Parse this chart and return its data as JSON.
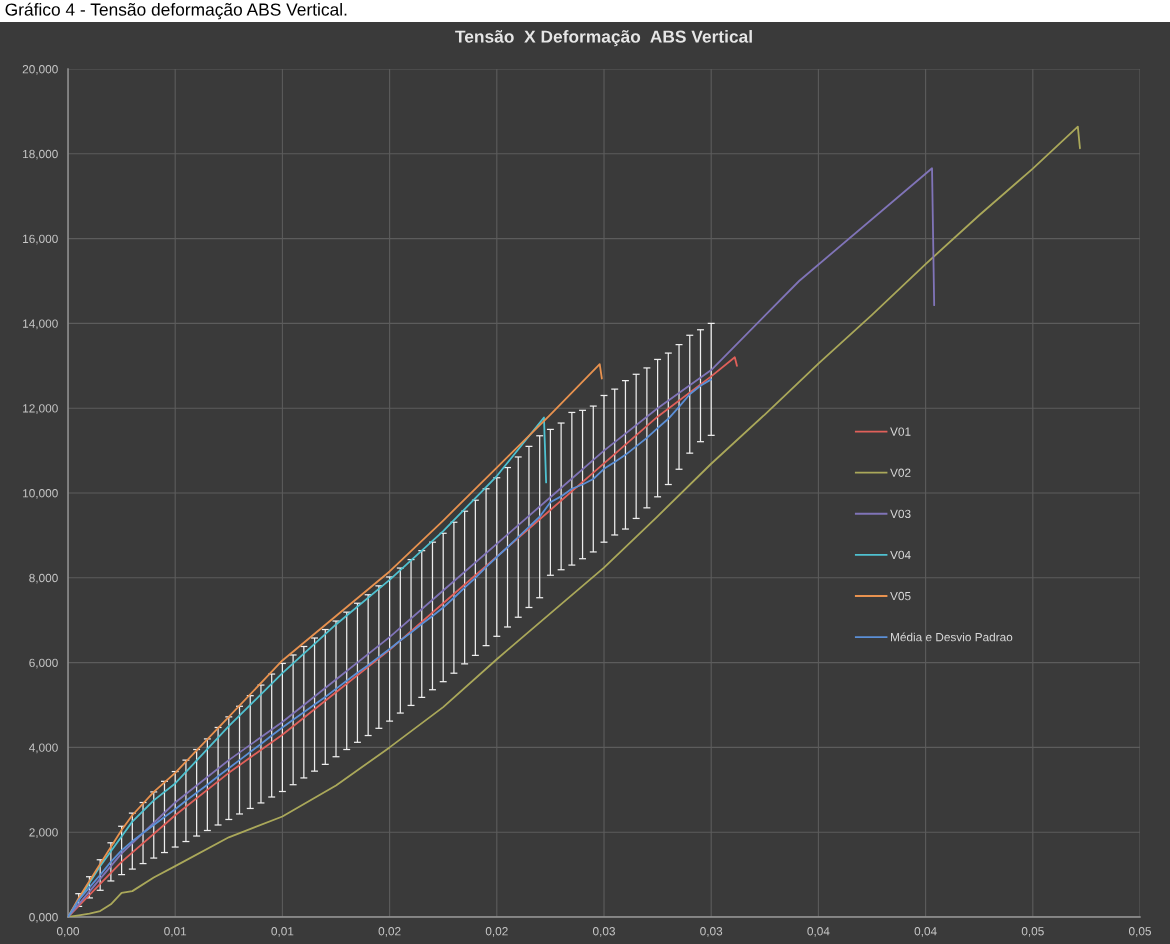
{
  "chart_data": {
    "type": "line",
    "title": "Tensão  X Deformação  ABS Vertical",
    "annotations": [
      "Gráfico 4 - Tensão deformação ABS Vertical."
    ],
    "xlim": [
      0,
      0.05
    ],
    "xticks": [
      {
        "value": 0,
        "label": "0,00"
      },
      {
        "value": 0.005,
        "label": "0,01"
      },
      {
        "value": 0.01,
        "label": "0,01"
      },
      {
        "value": 0.015,
        "label": "0,02"
      },
      {
        "value": 0.02,
        "label": "0,02"
      },
      {
        "value": 0.025,
        "label": "0,03"
      },
      {
        "value": 0.03,
        "label": "0,03"
      },
      {
        "value": 0.035,
        "label": "0,04"
      },
      {
        "value": 0.04,
        "label": "0,04"
      },
      {
        "value": 0.045,
        "label": "0,05"
      },
      {
        "value": 0.05,
        "label": "0,05"
      }
    ],
    "ylim": [
      0,
      20
    ],
    "yticks": [
      {
        "value": 0,
        "label": "0,000"
      },
      {
        "value": 2,
        "label": "2,000"
      },
      {
        "value": 4,
        "label": "4,000"
      },
      {
        "value": 6,
        "label": "6,000"
      },
      {
        "value": 8,
        "label": "8,000"
      },
      {
        "value": 10,
        "label": "10,000"
      },
      {
        "value": 12,
        "label": "12,000"
      },
      {
        "value": 14,
        "label": "14,000"
      },
      {
        "value": 16,
        "label": "16,000"
      },
      {
        "value": 18,
        "label": "18,000"
      },
      {
        "value": 20,
        "label": "20,000"
      }
    ],
    "grid": true,
    "legend": "right",
    "series": [
      {
        "name": "V01",
        "color": "#e0605a",
        "x": [
          0,
          0.0025,
          0.005,
          0.0075,
          0.01,
          0.0125,
          0.015,
          0.0175,
          0.02,
          0.0225,
          0.025,
          0.0275,
          0.03,
          0.0311,
          0.0312
        ],
        "values": [
          0,
          1.3,
          2.4,
          3.4,
          4.3,
          5.3,
          6.3,
          7.4,
          8.5,
          9.6,
          10.7,
          11.8,
          12.75,
          13.2,
          13.0
        ]
      },
      {
        "name": "V02",
        "color": "#aaa85a",
        "x": [
          0,
          0.0005,
          0.001,
          0.0015,
          0.002,
          0.0025,
          0.003,
          0.004,
          0.005,
          0.0075,
          0.01,
          0.0125,
          0.015,
          0.0175,
          0.02,
          0.0225,
          0.025,
          0.0275,
          0.03,
          0.0325,
          0.035,
          0.0375,
          0.04,
          0.0425,
          0.045,
          0.0471,
          0.0472
        ],
        "values": [
          0,
          0.04,
          0.08,
          0.14,
          0.3,
          0.57,
          0.61,
          0.93,
          1.2,
          1.88,
          2.37,
          3.1,
          4.0,
          4.95,
          6.08,
          7.16,
          8.24,
          9.45,
          10.69,
          11.85,
          13.05,
          14.2,
          15.4,
          16.55,
          17.65,
          18.64,
          18.13
        ]
      },
      {
        "name": "V03",
        "color": "#8074b8",
        "x": [
          0,
          0.0025,
          0.005,
          0.0075,
          0.01,
          0.0125,
          0.015,
          0.0175,
          0.02,
          0.0225,
          0.025,
          0.0275,
          0.03,
          0.0341,
          0.0403,
          0.0404
        ],
        "values": [
          0,
          1.5,
          2.7,
          3.7,
          4.6,
          5.6,
          6.6,
          7.7,
          8.8,
          9.9,
          11.0,
          12.0,
          12.9,
          15.0,
          17.66,
          14.43
        ]
      },
      {
        "name": "V04",
        "color": "#4fc1d0",
        "x": [
          0,
          0.0005,
          0.001,
          0.0015,
          0.002,
          0.0025,
          0.003,
          0.004,
          0.005,
          0.0075,
          0.01,
          0.0125,
          0.015,
          0.0175,
          0.02,
          0.0222,
          0.0223
        ],
        "values": [
          0,
          0.4,
          0.8,
          1.2,
          1.55,
          1.9,
          2.25,
          2.75,
          3.15,
          4.5,
          5.75,
          6.9,
          7.95,
          9.1,
          10.4,
          11.78,
          10.25
        ]
      },
      {
        "name": "V05",
        "color": "#e8924f",
        "x": [
          0,
          0.0005,
          0.001,
          0.0015,
          0.002,
          0.0025,
          0.003,
          0.004,
          0.005,
          0.0075,
          0.01,
          0.0125,
          0.015,
          0.0175,
          0.02,
          0.0225,
          0.0248,
          0.0249
        ],
        "values": [
          0,
          0.45,
          0.85,
          1.25,
          1.65,
          2.05,
          2.4,
          2.95,
          3.4,
          4.72,
          6.05,
          7.1,
          8.15,
          9.35,
          10.6,
          11.85,
          13.04,
          12.7
        ]
      },
      {
        "name": "Média e Desvio Padrao",
        "color": "#5b8fd6",
        "x": [
          0,
          0.0005,
          0.001,
          0.0015,
          0.002,
          0.0025,
          0.003,
          0.0035,
          0.004,
          0.0045,
          0.005,
          0.0055,
          0.006,
          0.0065,
          0.007,
          0.0075,
          0.008,
          0.0085,
          0.009,
          0.0095,
          0.01,
          0.0105,
          0.011,
          0.0115,
          0.012,
          0.0125,
          0.013,
          0.0135,
          0.014,
          0.0145,
          0.015,
          0.0155,
          0.016,
          0.0165,
          0.017,
          0.0175,
          0.018,
          0.0185,
          0.019,
          0.0195,
          0.02,
          0.0205,
          0.021,
          0.0215,
          0.022,
          0.0225,
          0.023,
          0.0235,
          0.024,
          0.0245,
          0.025,
          0.0255,
          0.026,
          0.0265,
          0.027,
          0.0275,
          0.028,
          0.0285,
          0.029,
          0.0295,
          0.03
        ],
        "values": [
          0,
          0.4,
          0.7,
          0.99,
          1.3,
          1.57,
          1.79,
          1.98,
          2.17,
          2.36,
          2.54,
          2.74,
          2.93,
          3.12,
          3.32,
          3.51,
          3.7,
          3.89,
          4.08,
          4.28,
          4.47,
          4.65,
          4.83,
          5.01,
          5.19,
          5.38,
          5.57,
          5.76,
          5.94,
          6.13,
          6.32,
          6.52,
          6.71,
          6.91,
          7.1,
          7.3,
          7.53,
          7.77,
          8.0,
          8.25,
          8.49,
          8.72,
          8.96,
          9.2,
          9.44,
          9.78,
          9.92,
          10.1,
          10.2,
          10.33,
          10.57,
          10.73,
          10.9,
          11.1,
          11.3,
          11.53,
          11.75,
          12.03,
          12.33,
          12.53,
          12.68
        ],
        "errors": [
          null,
          0.15,
          0.25,
          0.36,
          0.45,
          0.57,
          0.66,
          0.72,
          0.78,
          0.84,
          0.89,
          0.96,
          1.02,
          1.08,
          1.15,
          1.21,
          1.27,
          1.33,
          1.39,
          1.45,
          1.51,
          1.53,
          1.55,
          1.57,
          1.59,
          1.6,
          1.62,
          1.64,
          1.66,
          1.68,
          1.7,
          1.71,
          1.72,
          1.73,
          1.74,
          1.75,
          1.78,
          1.8,
          1.83,
          1.85,
          1.87,
          1.88,
          1.89,
          1.9,
          1.91,
          1.72,
          1.73,
          1.8,
          1.75,
          1.72,
          1.73,
          1.72,
          1.75,
          1.7,
          1.65,
          1.62,
          1.55,
          1.47,
          1.39,
          1.32,
          1.32
        ]
      }
    ]
  }
}
